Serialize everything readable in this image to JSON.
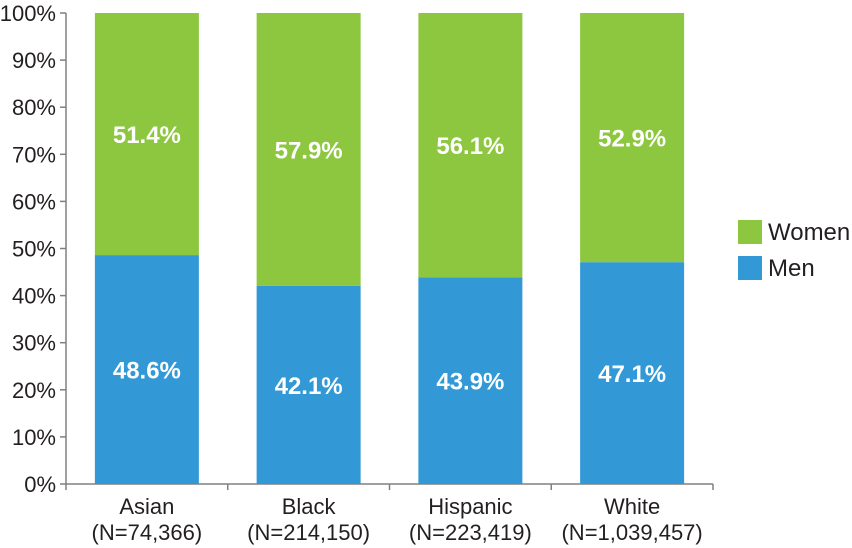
{
  "chart_data": {
    "type": "bar",
    "stacked": true,
    "categories": [
      [
        "Asian",
        "(N=74,366)"
      ],
      [
        "Black",
        "(N=214,150)"
      ],
      [
        "Hispanic",
        "(N=223,419)"
      ],
      [
        "White",
        "(N=1,039,457)"
      ]
    ],
    "series": [
      {
        "name": "Men",
        "color": "#3399d6",
        "values": [
          48.6,
          42.1,
          43.9,
          47.1
        ],
        "labels": [
          "48.6%",
          "42.1%",
          "43.9%",
          "47.1%"
        ]
      },
      {
        "name": "Women",
        "color": "#8dc63f",
        "values": [
          51.4,
          57.9,
          56.1,
          52.9
        ],
        "labels": [
          "51.4%",
          "57.9%",
          "56.1%",
          "52.9%"
        ]
      }
    ],
    "yticks": [
      "0%",
      "10%",
      "20%",
      "30%",
      "40%",
      "50%",
      "60%",
      "70%",
      "80%",
      "90%",
      "100%"
    ],
    "ylim": [
      0,
      100
    ],
    "grid": false,
    "legend_position": "right",
    "legend_order": [
      "Women",
      "Men"
    ],
    "title": "",
    "xlabel": "",
    "ylabel": ""
  }
}
